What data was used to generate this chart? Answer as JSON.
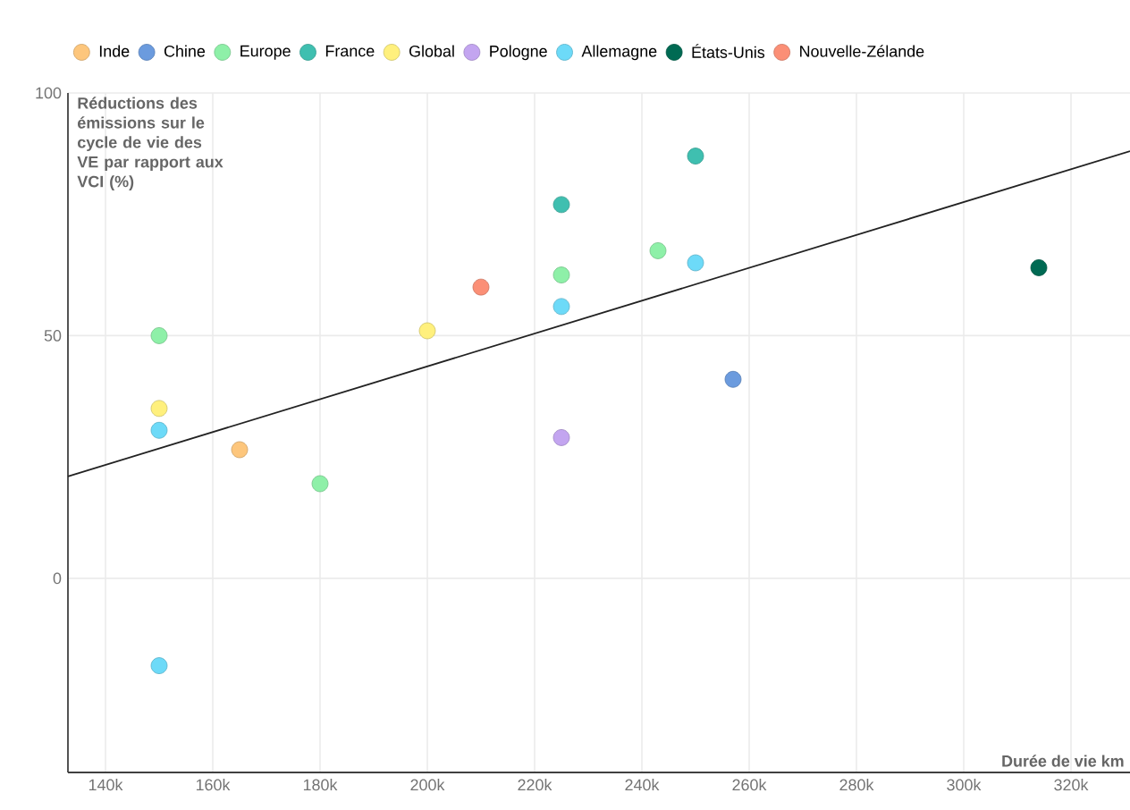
{
  "chart_data": {
    "type": "scatter",
    "xlabel": "Durée de vie km",
    "ylabel": "Réductions des émissions sur le cycle de vie des VE par rapport aux VCI (%)",
    "xlim": [
      133000,
      331000
    ],
    "ylim": [
      -40,
      100
    ],
    "xticks": [
      {
        "value": 140000,
        "label": "140k"
      },
      {
        "value": 160000,
        "label": "160k"
      },
      {
        "value": 180000,
        "label": "180k"
      },
      {
        "value": 200000,
        "label": "200k"
      },
      {
        "value": 220000,
        "label": "220k"
      },
      {
        "value": 240000,
        "label": "240k"
      },
      {
        "value": 260000,
        "label": "260k"
      },
      {
        "value": 280000,
        "label": "280k"
      },
      {
        "value": 300000,
        "label": "300k"
      },
      {
        "value": 320000,
        "label": "320k"
      }
    ],
    "yticks": [
      0,
      50,
      100
    ],
    "grid": true,
    "legend": "top left",
    "series": [
      {
        "name": "Inde",
        "color": "#fdc67c",
        "x": [
          165000
        ],
        "values": [
          26.5
        ]
      },
      {
        "name": "Chine",
        "color": "#6b9bde",
        "x": [
          257000
        ],
        "values": [
          41
        ]
      },
      {
        "name": "Europe",
        "color": "#8ef0a8",
        "x": [
          150000,
          180000,
          225000,
          243000
        ],
        "values": [
          50,
          19.5,
          62.5,
          67.5
        ]
      },
      {
        "name": "France",
        "color": "#3fbfb0",
        "x": [
          225000,
          250000
        ],
        "values": [
          77,
          87
        ]
      },
      {
        "name": "Global",
        "color": "#fff07d",
        "x": [
          150000,
          200000
        ],
        "values": [
          35,
          51
        ]
      },
      {
        "name": "Pologne",
        "color": "#c3a5f0",
        "x": [
          225000
        ],
        "values": [
          29
        ]
      },
      {
        "name": "Allemagne",
        "color": "#6ddaf8",
        "x": [
          150000,
          150000,
          225000,
          250000
        ],
        "values": [
          30.5,
          -18,
          56,
          65
        ]
      },
      {
        "name": "États-Unis",
        "color": "#006a53",
        "x": [
          314000
        ],
        "values": [
          64
        ]
      },
      {
        "name": "Nouvelle-Zélande",
        "color": "#fb8f76",
        "x": [
          210000
        ],
        "values": [
          60
        ]
      },
      {
        "type": "line",
        "marker": "none",
        "color": "#222222",
        "x": [
          133000,
          331000
        ],
        "values": [
          21,
          88
        ]
      }
    ]
  }
}
